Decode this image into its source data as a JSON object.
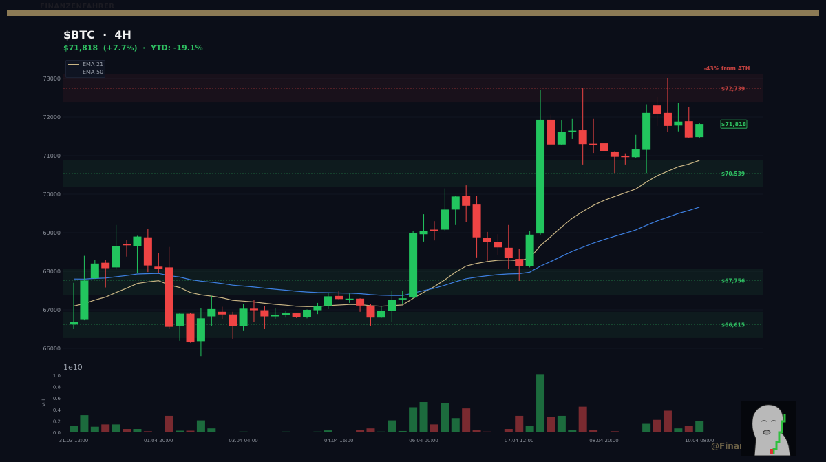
{
  "banner": {
    "text": "FINANZENFAHRER"
  },
  "header": {
    "title": "$BTC  ·  4H",
    "subtitle": "$71,818  (+7.7%)  ·  YTD: -19.1%"
  },
  "legend": [
    {
      "label": "EMA 21",
      "color": "#c9b584"
    },
    {
      "label": "EMA 50",
      "color": "#3d7fe0"
    }
  ],
  "colors": {
    "up": "#22c55e",
    "down": "#ef4444",
    "vol_up": "#1c6b3d",
    "vol_down": "#7a2a30",
    "resistance": "#c0413f",
    "support": "#2fbf62",
    "background": "#0b0e18"
  },
  "watermark": {
    "handle": "@Finanz"
  },
  "chart_data": {
    "type": "candlestick",
    "title": "$BTC · 4H",
    "ylim": [
      65750,
      73350
    ],
    "yticks": [
      66000,
      67000,
      68000,
      69000,
      70000,
      71000,
      72000,
      73000
    ],
    "xtick_labels": [
      {
        "index": 0,
        "label": "31.03 12:00"
      },
      {
        "index": 8,
        "label": "01.04 20:00"
      },
      {
        "index": 16,
        "label": "03.04 04:00"
      },
      {
        "index": 25,
        "label": "04.04 16:00"
      },
      {
        "index": 33,
        "label": "06.04 00:00"
      },
      {
        "index": 42,
        "label": "07.04 12:00"
      },
      {
        "index": 50,
        "label": "08.04 20:00"
      },
      {
        "index": 59,
        "label": "10.04 08:00"
      }
    ],
    "ohlc": [
      [
        66620,
        67700,
        66500,
        66690
      ],
      [
        66740,
        68400,
        66730,
        67760
      ],
      [
        67820,
        68300,
        67800,
        68200
      ],
      [
        68220,
        68290,
        67580,
        68080
      ],
      [
        68100,
        69200,
        68050,
        68650
      ],
      [
        68700,
        68810,
        68380,
        68680
      ],
      [
        68660,
        68920,
        67950,
        68900
      ],
      [
        68880,
        69100,
        67980,
        68150
      ],
      [
        68120,
        68480,
        67960,
        68060
      ],
      [
        68100,
        68630,
        66500,
        66560
      ],
      [
        66590,
        66920,
        66200,
        66900
      ],
      [
        66900,
        66920,
        66150,
        66160
      ],
      [
        66190,
        67050,
        65800,
        66780
      ],
      [
        66830,
        67360,
        66580,
        67020
      ],
      [
        66950,
        67080,
        66760,
        66880
      ],
      [
        66880,
        66950,
        66250,
        66580
      ],
      [
        66580,
        67150,
        66450,
        67030
      ],
      [
        67030,
        67260,
        66680,
        66990
      ],
      [
        66990,
        67100,
        66500,
        66830
      ],
      [
        66830,
        67040,
        66770,
        66860
      ],
      [
        66860,
        66970,
        66800,
        66910
      ],
      [
        66910,
        66920,
        66790,
        66810
      ],
      [
        66810,
        67010,
        66780,
        67000
      ],
      [
        66990,
        67180,
        66890,
        67090
      ],
      [
        67110,
        67440,
        67020,
        67350
      ],
      [
        67360,
        67490,
        67250,
        67280
      ],
      [
        67260,
        67420,
        67180,
        67290
      ],
      [
        67290,
        67300,
        66950,
        67110
      ],
      [
        67110,
        67150,
        66590,
        66800
      ],
      [
        66800,
        67100,
        66790,
        66970
      ],
      [
        66970,
        67500,
        66680,
        67260
      ],
      [
        67270,
        67500,
        67160,
        67300
      ],
      [
        67320,
        69050,
        67300,
        68990
      ],
      [
        68960,
        69480,
        68770,
        69050
      ],
      [
        69080,
        69300,
        68800,
        69060
      ],
      [
        69080,
        70150,
        69050,
        69600
      ],
      [
        69600,
        69960,
        69200,
        69940
      ],
      [
        69950,
        70230,
        69270,
        69700
      ],
      [
        69730,
        69960,
        68360,
        68880
      ],
      [
        68860,
        69020,
        68270,
        68750
      ],
      [
        68750,
        68960,
        68430,
        68620
      ],
      [
        68610,
        69200,
        68070,
        68340
      ],
      [
        68320,
        68590,
        67750,
        68130
      ],
      [
        68130,
        69040,
        68100,
        68950
      ],
      [
        68980,
        72700,
        68950,
        71930
      ],
      [
        71930,
        72060,
        71270,
        71290
      ],
      [
        71290,
        71910,
        71270,
        71610
      ],
      [
        71620,
        71950,
        71430,
        71650
      ],
      [
        71660,
        72750,
        70770,
        71300
      ],
      [
        71310,
        71950,
        71070,
        71300
      ],
      [
        71320,
        71720,
        70930,
        71110
      ],
      [
        71090,
        71100,
        70550,
        70970
      ],
      [
        70990,
        71060,
        70770,
        70960
      ],
      [
        70960,
        71540,
        70930,
        71160
      ],
      [
        71150,
        72330,
        70550,
        72110
      ],
      [
        72300,
        72520,
        71770,
        72090
      ],
      [
        72110,
        73010,
        71620,
        71770
      ],
      [
        71780,
        72360,
        71630,
        71880
      ],
      [
        71890,
        72250,
        71450,
        71470
      ],
      [
        71480,
        71850,
        71460,
        71820
      ]
    ],
    "ema": [
      {
        "name": "EMA 21",
        "period": 21,
        "start": 67100
      },
      {
        "name": "EMA 50",
        "period": 50,
        "start": 67800
      }
    ],
    "levels": [
      {
        "price": 72739,
        "label": "$72,739",
        "kind": "resistance",
        "zone": [
          72390,
          73110
        ]
      },
      {
        "price": 70539,
        "label": "$70,539",
        "kind": "support",
        "zone": [
          70180,
          70890
        ]
      },
      {
        "price": 67756,
        "label": "$67,756",
        "kind": "support",
        "zone": [
          67390,
          68070
        ]
      },
      {
        "price": 66615,
        "label": "$66,615",
        "kind": "support",
        "zone": [
          66270,
          66950
        ]
      }
    ],
    "ath_note": "-43% from ATH",
    "last_price_label": "$71,818",
    "last_price": 71818,
    "volume": {
      "ylabel": "Vol",
      "multiplier": "1e10",
      "ylim": [
        0,
        1.0
      ],
      "yticks": [
        "0.0",
        "0.2",
        "0.4",
        "0.6",
        "0.8",
        "1.0"
      ],
      "values": [
        0.11,
        0.3,
        0.1,
        0.14,
        0.14,
        0.06,
        0.06,
        0.02,
        0.0,
        0.29,
        0.03,
        0.03,
        0.21,
        0.07,
        0.003,
        0.0,
        0.015,
        0.01,
        0.0,
        0.0,
        0.015,
        0.0,
        0.0,
        0.015,
        0.035,
        0.005,
        0.01,
        0.04,
        0.07,
        0.015,
        0.21,
        0.025,
        0.44,
        0.53,
        0.14,
        0.51,
        0.25,
        0.42,
        0.04,
        0.015,
        0.0,
        0.06,
        0.29,
        0.12,
        1.02,
        0.27,
        0.29,
        0.04,
        0.45,
        0.04,
        0.0,
        0.02,
        0.0,
        0.0,
        0.15,
        0.22,
        0.38,
        0.07,
        0.12,
        0.2
      ]
    }
  }
}
